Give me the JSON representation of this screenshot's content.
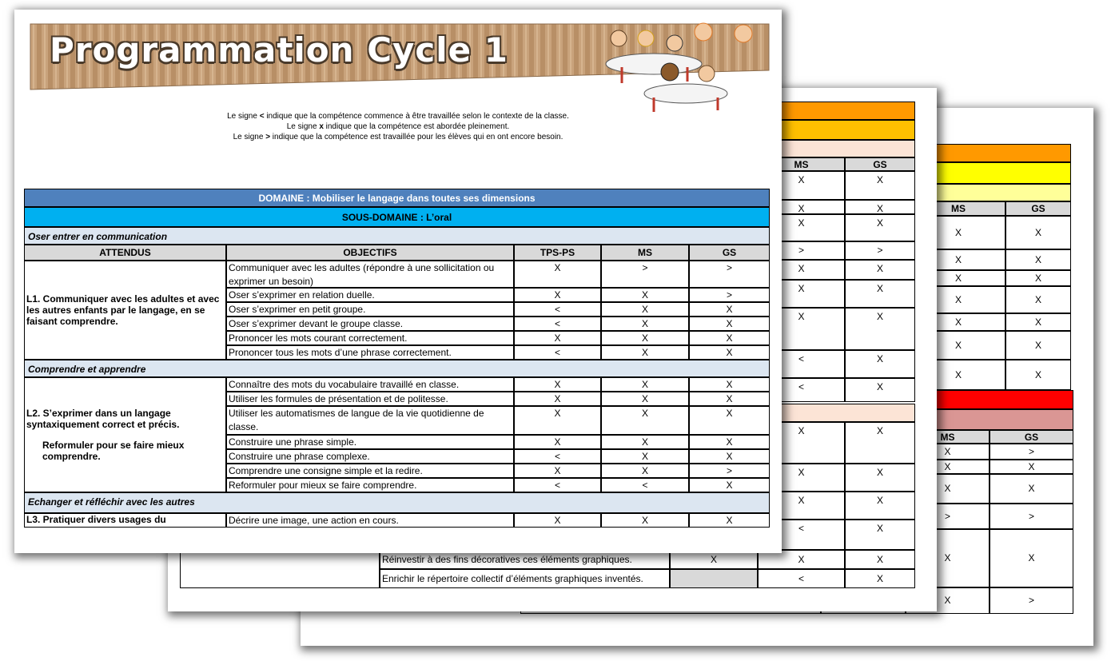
{
  "banner_title": "Programmation Cycle 1",
  "legend": [
    {
      "before": "Le signe ",
      "sign": "<",
      "after": " indique que la compétence commence à être travaillée selon le contexte de la classe."
    },
    {
      "before": "Le signe ",
      "sign": "x",
      "after": " indique que la compétence est abordée pleinement."
    },
    {
      "before": "Le signe ",
      "sign": ">",
      "after": " indique que la compétence est travaillée pour les élèves qui en ont encore besoin."
    }
  ],
  "table": {
    "domain": "DOMAINE : Mobiliser le langage dans toutes ses dimensions",
    "subdomain": "SOUS-DOMAINE : L’oral",
    "headers": [
      "ATTENDUS",
      "OBJECTIFS",
      "TPS-PS",
      "MS",
      "GS"
    ],
    "sections": [
      {
        "title": "Oser entrer en communication",
        "attendu": [
          "L1. Communiquer avec les adultes et avec les autres enfants par le langage, en se faisant comprendre."
        ],
        "rows": [
          [
            "Communiquer avec les adultes (répondre à une sollicitation ou exprimer un besoin)",
            "X",
            ">",
            ">"
          ],
          [
            "Oser s’exprimer en relation duelle.",
            "X",
            "X",
            ">"
          ],
          [
            "Oser s’exprimer en petit groupe.",
            "<",
            "X",
            "X"
          ],
          [
            "Oser s’exprimer devant le groupe classe.",
            "<",
            "X",
            "X"
          ],
          [
            "Prononcer les mots courant correctement.",
            "X",
            "X",
            "X"
          ],
          [
            "Prononcer tous les mots d’une phrase correctement.",
            "<",
            "X",
            "X"
          ]
        ]
      },
      {
        "title": "Comprendre et apprendre",
        "attendu": [
          "L2. S’exprimer dans un langage syntaxiquement correct et précis.",
          "Reformuler pour se faire mieux comprendre."
        ],
        "rows": [
          [
            "Connaître des mots du vocabulaire travaillé en classe.",
            "X",
            "X",
            "X"
          ],
          [
            "Utiliser les formules de présentation et de politesse.",
            "X",
            "X",
            "X"
          ],
          [
            "Utiliser les automatismes de langue de la vie quotidienne de classe.",
            "X",
            "X",
            "X"
          ],
          [
            "Construire une phrase simple.",
            "X",
            "X",
            "X"
          ],
          [
            "Construire une phrase complexe.",
            "<",
            "X",
            "X"
          ],
          [
            "Comprendre une consigne simple et la redire.",
            "X",
            "X",
            ">"
          ],
          [
            "Reformuler pour mieux se faire comprendre.",
            "<",
            "<",
            "X"
          ]
        ]
      },
      {
        "title": "Echanger et réfléchir avec les autres",
        "attendu": [
          "L3. Pratiquer divers usages du"
        ],
        "rows": [
          [
            "Décrire une image, une action en cours.",
            "X",
            "X",
            "X"
          ]
        ]
      }
    ]
  },
  "page2": {
    "headers": [
      "MS",
      "GS"
    ],
    "rows_a": [
      [
        "X",
        "X"
      ],
      [
        "X",
        "X"
      ],
      [
        "X",
        "X"
      ],
      [
        ">",
        ">"
      ],
      [
        "X",
        "X"
      ],
      [
        "X",
        "X"
      ],
      [
        "X",
        "X"
      ],
      [
        "<",
        "X"
      ],
      [
        "<",
        "X"
      ]
    ],
    "rows_b": [
      [
        "X",
        "X"
      ],
      [
        "X",
        "X"
      ],
      [
        "X",
        "X"
      ],
      [
        "<",
        "X"
      ]
    ],
    "extra_rows": [
      {
        "objective": "Réinvestir à des fins décoratives ces éléments graphiques.",
        "values": [
          "X",
          "X",
          "X"
        ],
        "tps_shaded": false
      },
      {
        "objective": "Enrichir le répertoire collectif d’éléments graphiques inventés.",
        "values": [
          "<",
          "X"
        ],
        "tps_shaded": true
      }
    ]
  },
  "page3": {
    "headers_a": [
      "MS",
      "GS"
    ],
    "rows_a": [
      [
        "X",
        "X"
      ],
      [
        "X",
        "X"
      ],
      [
        "X",
        "X"
      ],
      [
        "X",
        "X"
      ],
      [
        "X",
        "X"
      ],
      [
        "X",
        "X"
      ],
      [
        "X",
        "X"
      ]
    ],
    "headers_b": [
      "MS",
      "GS"
    ],
    "rows_b": [
      [
        "X",
        ">"
      ],
      [
        "X",
        "X"
      ],
      [
        "X",
        "X"
      ],
      [
        ">",
        ">"
      ],
      [
        "X",
        "X"
      ],
      [
        "X",
        ">"
      ]
    ]
  }
}
